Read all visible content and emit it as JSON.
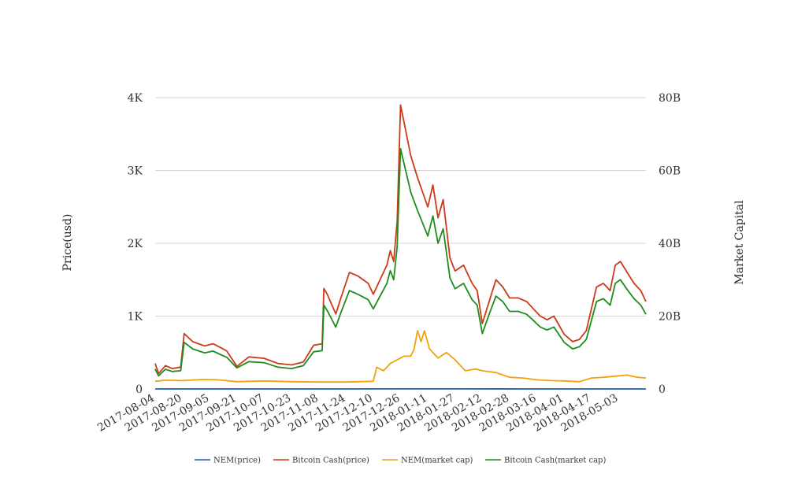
{
  "chart_data": {
    "type": "line",
    "y_left_label": "Price(usd)",
    "y_right_label": "Market Capital",
    "y_left_ticks": [
      "0",
      "1K",
      "2K",
      "3K",
      "4K"
    ],
    "y_right_ticks": [
      "0",
      "20B",
      "40B",
      "60B",
      "80B"
    ],
    "y_left_range": [
      0,
      4000
    ],
    "y_right_range": [
      0,
      80000000000
    ],
    "x_range": [
      "2017-08-04",
      "2018-05-19"
    ],
    "x_tick_labels": [
      "2017-08-04",
      "2017-08-20",
      "2017-09-05",
      "2017-09-21",
      "2017-10-07",
      "2017-10-23",
      "2017-11-08",
      "2017-11-24",
      "2017-12-10",
      "2017-12-26",
      "2018-01-11",
      "2018-01-27",
      "2018-02-12",
      "2018-02-28",
      "2018-03-16",
      "2018-04-01",
      "2018-04-17",
      "2018-05-03"
    ],
    "grid": "horizontal",
    "legend_position": "bottom",
    "series": [
      {
        "name": "NEM(price)",
        "axis": "left",
        "color": "#1f5fa8",
        "x": [
          "2017-08-04",
          "2017-09-21",
          "2017-11-08",
          "2017-12-26",
          "2018-01-07",
          "2018-01-27",
          "2018-03-16",
          "2018-05-19"
        ],
        "y": [
          0.25,
          0.2,
          0.2,
          0.8,
          1.6,
          1.0,
          0.35,
          0.3
        ]
      },
      {
        "name": "Bitcoin Cash(price)",
        "axis": "left",
        "color": "#cc3a17",
        "x": [
          "2017-08-04",
          "2017-08-06",
          "2017-08-10",
          "2017-08-14",
          "2017-08-19",
          "2017-08-21",
          "2017-08-26",
          "2017-09-02",
          "2017-09-07",
          "2017-09-12",
          "2017-09-15",
          "2017-09-21",
          "2017-09-28",
          "2017-10-07",
          "2017-10-15",
          "2017-10-23",
          "2017-10-30",
          "2017-11-05",
          "2017-11-10",
          "2017-11-11",
          "2017-11-13",
          "2017-11-18",
          "2017-11-21",
          "2017-11-26",
          "2017-12-01",
          "2017-12-07",
          "2017-12-10",
          "2017-12-14",
          "2017-12-18",
          "2017-12-20",
          "2017-12-22",
          "2017-12-24",
          "2017-12-26",
          "2018-01-01",
          "2018-01-05",
          "2018-01-08",
          "2018-01-11",
          "2018-01-14",
          "2018-01-17",
          "2018-01-20",
          "2018-01-24",
          "2018-01-27",
          "2018-02-01",
          "2018-02-06",
          "2018-02-09",
          "2018-02-12",
          "2018-02-16",
          "2018-02-20",
          "2018-02-24",
          "2018-02-28",
          "2018-03-05",
          "2018-03-10",
          "2018-03-14",
          "2018-03-18",
          "2018-03-22",
          "2018-03-26",
          "2018-04-01",
          "2018-04-06",
          "2018-04-10",
          "2018-04-14",
          "2018-04-17",
          "2018-04-20",
          "2018-04-24",
          "2018-04-28",
          "2018-05-01",
          "2018-05-04",
          "2018-05-08",
          "2018-05-12",
          "2018-05-16",
          "2018-05-19"
        ],
        "y": [
          350,
          210,
          320,
          280,
          300,
          760,
          650,
          590,
          620,
          560,
          520,
          310,
          440,
          420,
          350,
          330,
          370,
          600,
          620,
          1380,
          1300,
          1030,
          1250,
          1600,
          1550,
          1450,
          1300,
          1500,
          1700,
          1900,
          1750,
          2300,
          3900,
          3200,
          2900,
          2700,
          2500,
          2800,
          2350,
          2600,
          1800,
          1620,
          1700,
          1450,
          1350,
          900,
          1200,
          1500,
          1400,
          1250,
          1250,
          1200,
          1100,
          1000,
          950,
          1000,
          750,
          650,
          680,
          800,
          1100,
          1400,
          1450,
          1350,
          1700,
          1750,
          1600,
          1450,
          1350,
          1200
        ]
      },
      {
        "name": "NEM(market cap)",
        "axis": "right",
        "color": "#f0a30a",
        "x": [
          "2017-08-04",
          "2017-08-10",
          "2017-08-20",
          "2017-09-01",
          "2017-09-10",
          "2017-09-21",
          "2017-10-07",
          "2017-10-23",
          "2017-11-08",
          "2017-11-24",
          "2017-12-10",
          "2017-12-12",
          "2017-12-16",
          "2017-12-20",
          "2017-12-24",
          "2017-12-28",
          "2018-01-01",
          "2018-01-03",
          "2018-01-05",
          "2018-01-07",
          "2018-01-09",
          "2018-01-12",
          "2018-01-17",
          "2018-01-22",
          "2018-01-27",
          "2018-02-02",
          "2018-02-08",
          "2018-02-12",
          "2018-02-20",
          "2018-02-28",
          "2018-03-08",
          "2018-03-16",
          "2018-03-24",
          "2018-04-01",
          "2018-04-10",
          "2018-04-17",
          "2018-04-24",
          "2018-05-01",
          "2018-05-08",
          "2018-05-14",
          "2018-05-19"
        ],
        "y": [
          2100000000,
          2400000000,
          2300000000,
          2600000000,
          2500000000,
          2000000000,
          2200000000,
          2000000000,
          1900000000,
          1900000000,
          2100000000,
          6000000000,
          5000000000,
          7000000000,
          8000000000,
          9000000000,
          9000000000,
          11000000000,
          16000000000,
          13000000000,
          16000000000,
          11000000000,
          8500000000,
          10000000000,
          8000000000,
          5000000000,
          5500000000,
          5000000000,
          4500000000,
          3200000000,
          3000000000,
          2500000000,
          2300000000,
          2200000000,
          2000000000,
          3000000000,
          3200000000,
          3500000000,
          3800000000,
          3200000000,
          3000000000
        ]
      },
      {
        "name": "Bitcoin Cash(market cap)",
        "axis": "right",
        "color": "#1e8c1e",
        "x": [
          "2017-08-04",
          "2017-08-06",
          "2017-08-10",
          "2017-08-14",
          "2017-08-19",
          "2017-08-21",
          "2017-08-26",
          "2017-09-02",
          "2017-09-07",
          "2017-09-12",
          "2017-09-15",
          "2017-09-21",
          "2017-09-28",
          "2017-10-07",
          "2017-10-15",
          "2017-10-23",
          "2017-10-30",
          "2017-11-05",
          "2017-11-10",
          "2017-11-11",
          "2017-11-13",
          "2017-11-18",
          "2017-11-21",
          "2017-11-26",
          "2017-12-01",
          "2017-12-07",
          "2017-12-10",
          "2017-12-14",
          "2017-12-18",
          "2017-12-20",
          "2017-12-22",
          "2017-12-24",
          "2017-12-26",
          "2018-01-01",
          "2018-01-05",
          "2018-01-08",
          "2018-01-11",
          "2018-01-14",
          "2018-01-17",
          "2018-01-20",
          "2018-01-24",
          "2018-01-27",
          "2018-02-01",
          "2018-02-06",
          "2018-02-09",
          "2018-02-12",
          "2018-02-16",
          "2018-02-20",
          "2018-02-24",
          "2018-02-28",
          "2018-03-05",
          "2018-03-10",
          "2018-03-14",
          "2018-03-18",
          "2018-03-22",
          "2018-03-26",
          "2018-04-01",
          "2018-04-06",
          "2018-04-10",
          "2018-04-14",
          "2018-04-17",
          "2018-04-20",
          "2018-04-24",
          "2018-04-28",
          "2018-05-01",
          "2018-05-04",
          "2018-05-08",
          "2018-05-12",
          "2018-05-16",
          "2018-05-19"
        ],
        "y": [
          5500000000,
          3600000000,
          5400000000,
          4800000000,
          5000000000,
          12800000000,
          11000000000,
          9900000000,
          10400000000,
          9300000000,
          8700000000,
          5800000000,
          7500000000,
          7200000000,
          6000000000,
          5600000000,
          6400000000,
          10200000000,
          10500000000,
          23000000000,
          21500000000,
          17000000000,
          21000000000,
          27000000000,
          26000000000,
          24500000000,
          22000000000,
          25500000000,
          29000000000,
          32500000000,
          30000000000,
          39000000000,
          66000000000,
          54000000000,
          49000000000,
          45500000000,
          42000000000,
          47500000000,
          40000000000,
          44000000000,
          30500000000,
          27500000000,
          29000000000,
          24500000000,
          23000000000,
          15200000000,
          20500000000,
          25500000000,
          24000000000,
          21300000000,
          21300000000,
          20500000000,
          18800000000,
          17000000000,
          16200000000,
          17000000000,
          12800000000,
          11000000000,
          11600000000,
          13600000000,
          18800000000,
          24000000000,
          24800000000,
          23000000000,
          29000000000,
          30000000000,
          27300000000,
          24800000000,
          23000000000,
          20500000000
        ]
      }
    ]
  }
}
